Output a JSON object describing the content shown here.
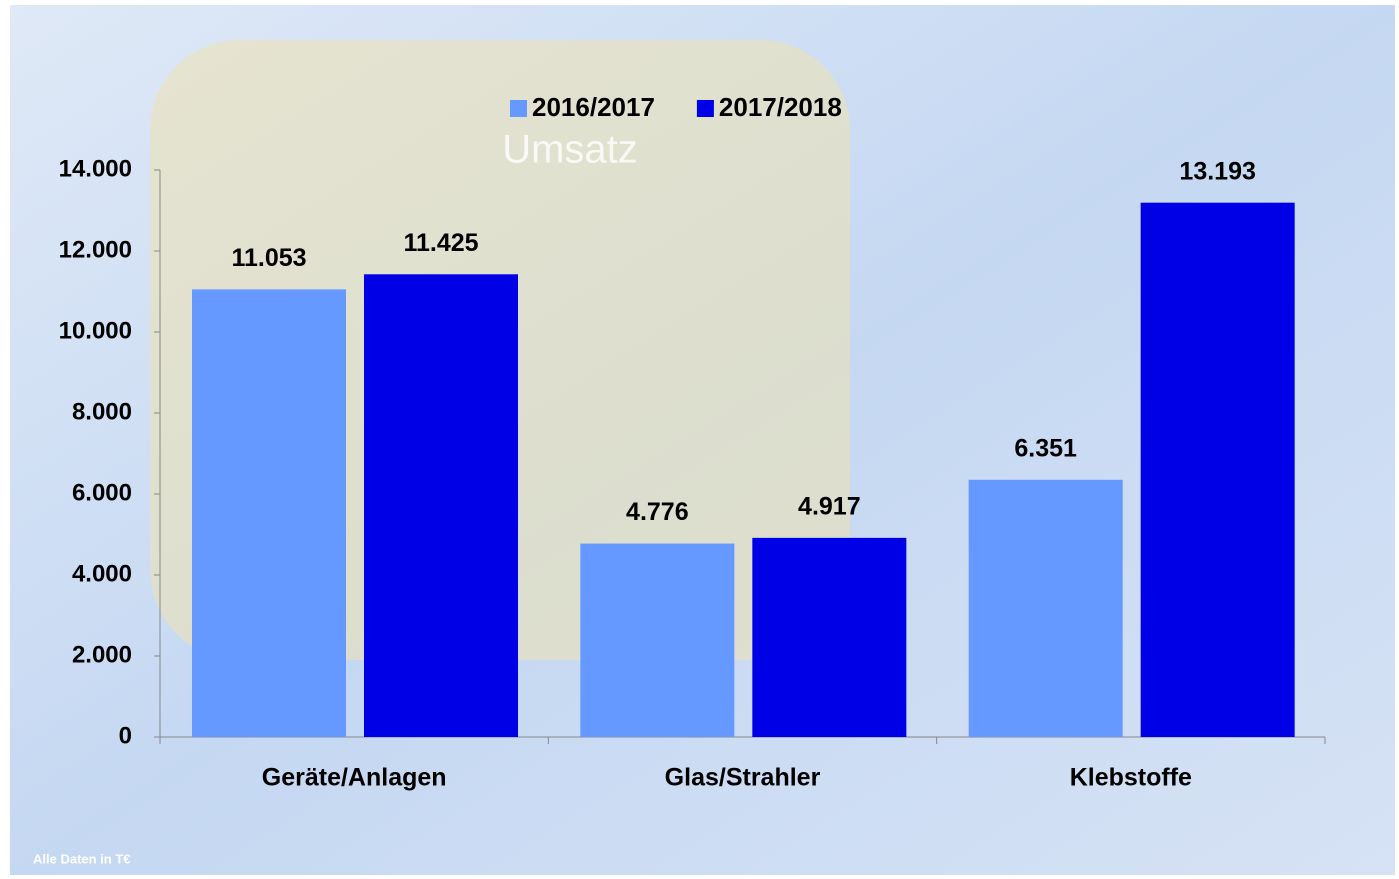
{
  "chart_data": {
    "type": "bar",
    "title": "Umsatz",
    "note": "Alle Daten in T€",
    "categories": [
      "Geräte/Anlagen",
      "Glas/Strahler",
      "Klebstoffe"
    ],
    "series": [
      {
        "name": "2016/2017",
        "color": "#6699ff",
        "values": [
          11053,
          4776,
          6351
        ],
        "value_labels": [
          "11.053",
          "4.776",
          "6.351"
        ]
      },
      {
        "name": "2017/2018",
        "color": "#0000e6",
        "values": [
          11425,
          4917,
          13193
        ],
        "value_labels": [
          "11.425",
          "4.917",
          "13.193"
        ]
      }
    ],
    "ylim": [
      0,
      14000
    ],
    "yticks": [
      {
        "value": 0,
        "label": "0"
      },
      {
        "value": 2000,
        "label": "2.000"
      },
      {
        "value": 4000,
        "label": "4.000"
      },
      {
        "value": 6000,
        "label": "6.000"
      },
      {
        "value": 8000,
        "label": "8.000"
      },
      {
        "value": 10000,
        "label": "10.000"
      },
      {
        "value": 12000,
        "label": "12.000"
      },
      {
        "value": 14000,
        "label": "14.000"
      }
    ],
    "legend": "top"
  }
}
